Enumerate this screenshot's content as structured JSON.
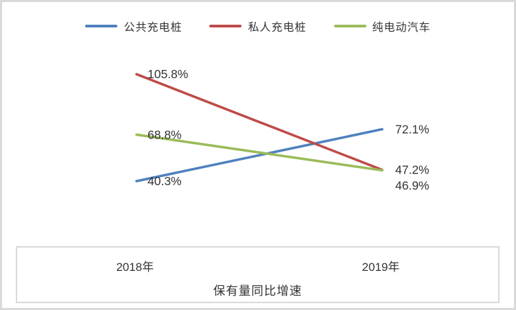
{
  "chart_data": {
    "type": "line",
    "categories": [
      "2018年",
      "2019年"
    ],
    "series": [
      {
        "name": "公共充电桩",
        "color": "#4F81BD",
        "values": [
          40.3,
          72.1
        ],
        "labels": [
          "40.3%",
          "72.1%"
        ]
      },
      {
        "name": "私人充电桩",
        "color": "#BE4B48",
        "values": [
          105.8,
          47.2
        ],
        "labels": [
          "105.8%",
          "47.2%"
        ]
      },
      {
        "name": "纯电动汽车",
        "color": "#9BBB59",
        "values": [
          68.8,
          46.9
        ],
        "labels": [
          "68.8%",
          "46.9%"
        ]
      }
    ],
    "title": "",
    "xlabel": "保有量同比增速",
    "ylabel": "",
    "ylim": [
      0,
      120
    ],
    "grid": false,
    "legend_position": "top",
    "data_label_color": "#333333"
  }
}
